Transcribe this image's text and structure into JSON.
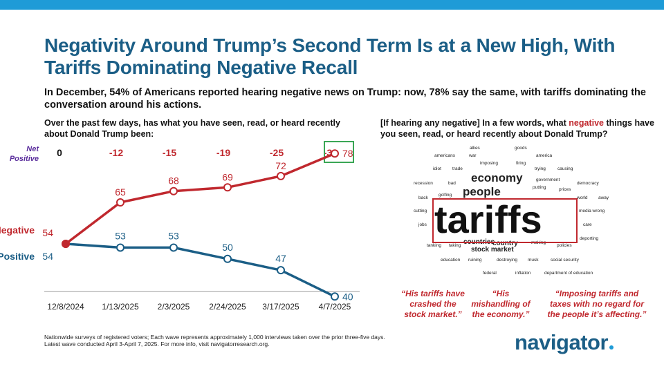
{
  "header": {
    "title": "Negativity Around Trump’s Second Term Is at a New High, With Tariffs Dominating Negative Recall",
    "subtitle": "In December, 54% of Americans reported hearing negative news on Trump: now, 78% say the same, with tariffs dominating the conversation around his actions.",
    "question_left": "Over the past few days, has what you have seen, read, or heard recently about Donald Trump been:",
    "question_right_pre": "[If hearing any negative] In a few words, what ",
    "question_right_highlight": "negative",
    "question_right_post": " things have you seen, read, or heard recently about Donald Trump?"
  },
  "chart_data": {
    "type": "line",
    "x": [
      "12/8/2024",
      "1/13/2025",
      "2/3/2025",
      "2/24/2025",
      "3/17/2025",
      "4/7/2025"
    ],
    "series": [
      {
        "name": "Negative",
        "values": [
          54,
          65,
          68,
          69,
          72,
          78
        ],
        "color": "#c0282e"
      },
      {
        "name": "Positive",
        "values": [
          54,
          53,
          53,
          50,
          47,
          40
        ],
        "color": "#1b5e86"
      }
    ],
    "net_positive_label_line1": "Net",
    "net_positive_label_line2": "Positive",
    "net_positive_values": [
      "0",
      "-12",
      "-15",
      "-19",
      "-25",
      "-38"
    ],
    "highlight_last_net": true,
    "colors": {
      "negative": "#c0282e",
      "positive": "#1b5e86",
      "net_label": "#5a2d9c",
      "net_highlight_box": "#3aa655"
    }
  },
  "wordcloud": {
    "small": [
      "allies",
      "goods",
      "americans",
      "war",
      "america",
      "imposing",
      "firing",
      "idiot",
      "trade",
      "trying",
      "causing",
      "recession",
      "bad",
      "government",
      "democracy",
      "putting",
      "prices",
      "back",
      "golfing",
      "world",
      "away",
      "cutting",
      "media wrong",
      "jobs",
      "care",
      "deporting",
      "tanking",
      "taking",
      "making",
      "policies",
      "education",
      "ruining",
      "destroying",
      "musk",
      "social security",
      "federal",
      "inflation",
      "department of education"
    ],
    "medium": [
      "countries",
      "stock market",
      "country"
    ],
    "big": [
      "economy",
      "people"
    ],
    "huge": "tariffs"
  },
  "quotes": [
    "“His tariffs have crashed the stock market.”",
    "“His mishandling of the economy.”",
    "“Imposing tariffs and taxes with no regard for the people it’s affecting.”"
  ],
  "footnote": {
    "line1": "Nationwide surveys of registered voters; Each wave represents approximately 1,000 interviews taken over the prior three-five days.",
    "line2": "Latest wave conducted April 3-April 7, 2025. For more info, visit navigatorresearch.org."
  },
  "brand": {
    "logo": "navigator"
  }
}
